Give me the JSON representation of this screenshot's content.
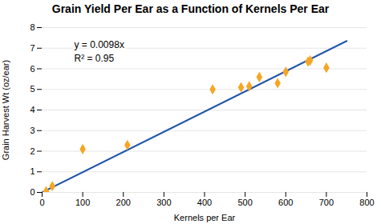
{
  "chart_data": {
    "type": "scatter",
    "title": "Grain Yield Per Ear as a Function of Kernels Per Ear",
    "xlabel": "Kernels per Ear",
    "ylabel": "Grain Harvest Wt (oz/ear)",
    "series": [
      {
        "type": "scatter",
        "color": "#F5A623",
        "marker": "diamond",
        "x": [
          10,
          25,
          100,
          210,
          420,
          490,
          510,
          535,
          580,
          600,
          655,
          660,
          700
        ],
        "values": [
          0.05,
          0.3,
          2.1,
          2.3,
          5.0,
          5.1,
          5.15,
          5.6,
          5.3,
          5.85,
          6.35,
          6.4,
          6.05
        ]
      },
      {
        "type": "line",
        "color": "#2255AA",
        "x": [
          0,
          750
        ],
        "values": [
          0,
          7.35
        ]
      }
    ],
    "annotations": [
      "y = 0.0098x",
      "R² = 0.95"
    ],
    "xlim": [
      0,
      800
    ],
    "ylim": [
      0,
      8
    ],
    "xticks": [
      0,
      100,
      200,
      300,
      400,
      500,
      600,
      700,
      800
    ],
    "yticks": [
      0,
      1,
      2,
      3,
      4,
      5,
      6,
      7,
      8
    ],
    "grid": "y"
  }
}
